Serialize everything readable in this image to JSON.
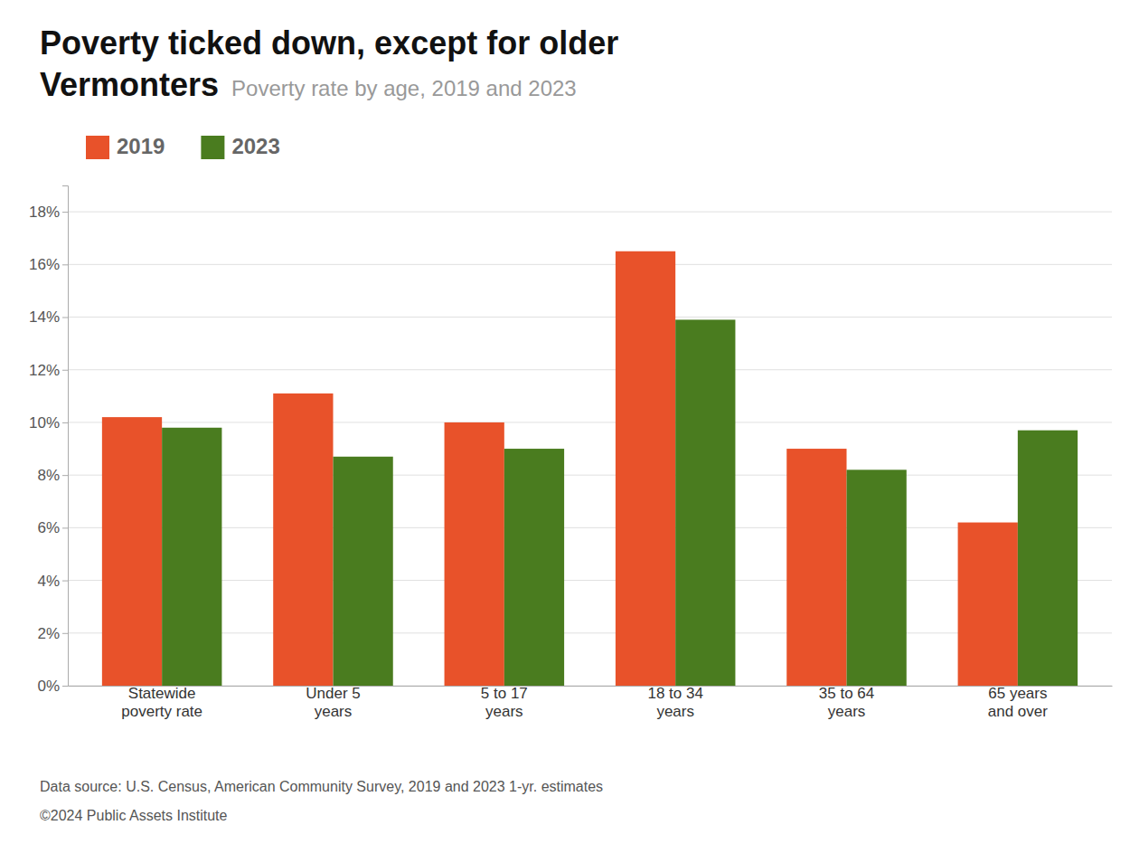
{
  "chart_data": {
    "type": "bar",
    "title": "Poverty ticked down, except for older\nVermonters",
    "subtitle": "Poverty rate by age, 2019 and 2023",
    "categories": [
      "Statewide\npoverty rate",
      "Under 5\nyears",
      "5 to 17\nyears",
      "18 to 34\nyears",
      "35 to 64\nyears",
      "65 years\nand over"
    ],
    "series": [
      {
        "name": "2019",
        "color": "#e8522a",
        "values": [
          10.2,
          11.1,
          10.0,
          16.5,
          9.0,
          6.2
        ]
      },
      {
        "name": "2023",
        "color": "#4a7c1f",
        "values": [
          9.8,
          8.7,
          9.0,
          13.9,
          8.2,
          9.7
        ]
      }
    ],
    "ylim": [
      0,
      19
    ],
    "yticks": [
      {
        "value": 0,
        "label": "0%"
      },
      {
        "value": 2,
        "label": "2%"
      },
      {
        "value": 4,
        "label": "4%"
      },
      {
        "value": 6,
        "label": "6%"
      },
      {
        "value": 8,
        "label": "8%"
      },
      {
        "value": 10,
        "label": "10%"
      },
      {
        "value": 12,
        "label": "12%"
      },
      {
        "value": 14,
        "label": "14%"
      },
      {
        "value": 16,
        "label": "16%"
      },
      {
        "value": 18,
        "label": "18%"
      }
    ],
    "grid": true,
    "legend": "upper left",
    "annotations": [
      "Data source: U.S. Census, American Community Survey, 2019 and 2023 1-yr. estimates",
      "©2024 Public Assets Institute"
    ]
  }
}
